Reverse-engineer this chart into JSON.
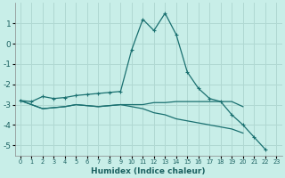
{
  "xlabel": "Humidex (Indice chaleur)",
  "background_color": "#c8eee8",
  "grid_color": "#b0d8d2",
  "line_color": "#1a7070",
  "xlim": [
    -0.5,
    23.5
  ],
  "ylim": [
    -5.5,
    2.0
  ],
  "xticks": [
    0,
    1,
    2,
    3,
    4,
    5,
    6,
    7,
    8,
    9,
    10,
    11,
    12,
    13,
    14,
    15,
    16,
    17,
    18,
    19,
    20,
    21,
    22,
    23
  ],
  "yticks": [
    -5,
    -4,
    -3,
    -2,
    -1,
    0,
    1
  ],
  "series1_x": [
    0,
    1,
    2,
    3,
    4,
    5,
    6,
    7,
    8,
    9,
    10,
    11,
    12,
    13,
    14,
    15,
    16,
    17,
    18,
    19,
    20,
    21,
    22
  ],
  "series1_y": [
    -2.8,
    -2.85,
    -2.6,
    -2.7,
    -2.65,
    -2.55,
    -2.5,
    -2.45,
    -2.4,
    -2.35,
    -0.3,
    1.2,
    0.65,
    1.5,
    0.45,
    -1.4,
    -2.2,
    -2.7,
    -2.85,
    -3.5,
    -4.0,
    -4.6,
    -5.2
  ],
  "series2_x": [
    0,
    2,
    3,
    4,
    5,
    6,
    7,
    8,
    9,
    10,
    11,
    12,
    13,
    14,
    15,
    16,
    17,
    18,
    19,
    20
  ],
  "series2_y": [
    -2.8,
    -3.2,
    -3.15,
    -3.1,
    -3.0,
    -3.05,
    -3.1,
    -3.05,
    -3.0,
    -3.0,
    -3.0,
    -2.9,
    -2.9,
    -2.85,
    -2.85,
    -2.85,
    -2.85,
    -2.85,
    -2.85,
    -3.1
  ],
  "series3_x": [
    0,
    2,
    3,
    4,
    5,
    6,
    7,
    8,
    9,
    10,
    11,
    12,
    13,
    14,
    15,
    16,
    17,
    18,
    19,
    20
  ],
  "series3_y": [
    -2.8,
    -3.2,
    -3.15,
    -3.1,
    -3.0,
    -3.05,
    -3.1,
    -3.05,
    -3.0,
    -3.1,
    -3.2,
    -3.4,
    -3.5,
    -3.7,
    -3.8,
    -3.9,
    -4.0,
    -4.1,
    -4.2,
    -4.4
  ]
}
